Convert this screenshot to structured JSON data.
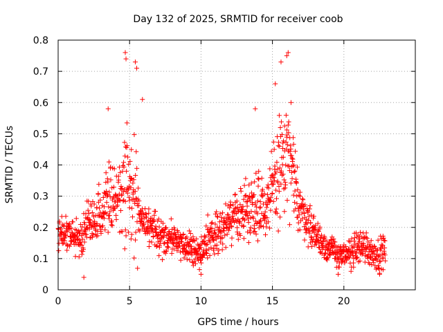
{
  "chart_data": {
    "type": "scatter",
    "title": "Day 132 of 2025, SRMTID for receiver coob",
    "xlabel": "GPS time / hours",
    "ylabel": "SRMTID / TECUs",
    "xlim": [
      0,
      25
    ],
    "ylim": [
      0,
      0.8
    ],
    "grid": true,
    "marker": "+",
    "marker_color": "#ff0000",
    "x_ticks": [
      "0",
      "5",
      "10",
      "15",
      "20"
    ],
    "y_ticks": [
      "0",
      "0.1",
      "0.2",
      "0.3",
      "0.4",
      "0.5",
      "0.6",
      "0.7",
      "0.8"
    ],
    "envelope_estimate": {
      "x": [
        0,
        0.5,
        1,
        1.5,
        2,
        2.5,
        3,
        3.5,
        4,
        4.5,
        4.8,
        5,
        5.3,
        5.6,
        6,
        6.5,
        7,
        7.5,
        8,
        8.5,
        9,
        9.5,
        10,
        10.5,
        11,
        11.5,
        12,
        12.5,
        13,
        13.5,
        14,
        14.5,
        15,
        15.3,
        15.6,
        16,
        16.3,
        16.6,
        17,
        17.5,
        18,
        18.5,
        19,
        19.5,
        20,
        20.5,
        21,
        21.5,
        22,
        22.5,
        22.9
      ],
      "center": [
        0.2,
        0.18,
        0.17,
        0.16,
        0.2,
        0.22,
        0.25,
        0.3,
        0.28,
        0.3,
        0.35,
        0.32,
        0.3,
        0.25,
        0.2,
        0.19,
        0.18,
        0.17,
        0.16,
        0.15,
        0.14,
        0.13,
        0.12,
        0.17,
        0.18,
        0.2,
        0.22,
        0.24,
        0.25,
        0.27,
        0.28,
        0.27,
        0.3,
        0.36,
        0.4,
        0.42,
        0.38,
        0.32,
        0.26,
        0.22,
        0.18,
        0.15,
        0.13,
        0.12,
        0.1,
        0.12,
        0.14,
        0.14,
        0.12,
        0.11,
        0.13
      ],
      "spread": [
        0.07,
        0.06,
        0.06,
        0.06,
        0.07,
        0.07,
        0.08,
        0.1,
        0.1,
        0.13,
        0.22,
        0.14,
        0.2,
        0.16,
        0.07,
        0.06,
        0.06,
        0.06,
        0.06,
        0.05,
        0.05,
        0.05,
        0.05,
        0.06,
        0.06,
        0.07,
        0.07,
        0.08,
        0.09,
        0.1,
        0.14,
        0.1,
        0.13,
        0.18,
        0.17,
        0.18,
        0.16,
        0.12,
        0.08,
        0.07,
        0.06,
        0.05,
        0.05,
        0.05,
        0.04,
        0.05,
        0.06,
        0.06,
        0.05,
        0.05,
        0.06
      ]
    },
    "peak_points": [
      {
        "x": 4.7,
        "y": 0.76
      },
      {
        "x": 4.75,
        "y": 0.74
      },
      {
        "x": 5.4,
        "y": 0.73
      },
      {
        "x": 5.5,
        "y": 0.71
      },
      {
        "x": 3.5,
        "y": 0.58
      },
      {
        "x": 5.9,
        "y": 0.61
      },
      {
        "x": 15.6,
        "y": 0.73
      },
      {
        "x": 16.1,
        "y": 0.76
      },
      {
        "x": 16.0,
        "y": 0.75
      },
      {
        "x": 13.8,
        "y": 0.58
      },
      {
        "x": 15.2,
        "y": 0.66
      },
      {
        "x": 16.3,
        "y": 0.6
      },
      {
        "x": 1.8,
        "y": 0.04
      },
      {
        "x": 10.0,
        "y": 0.05
      },
      {
        "x": 19.6,
        "y": 0.05
      },
      {
        "x": 22.5,
        "y": 0.05
      }
    ],
    "n_points": 1400
  }
}
